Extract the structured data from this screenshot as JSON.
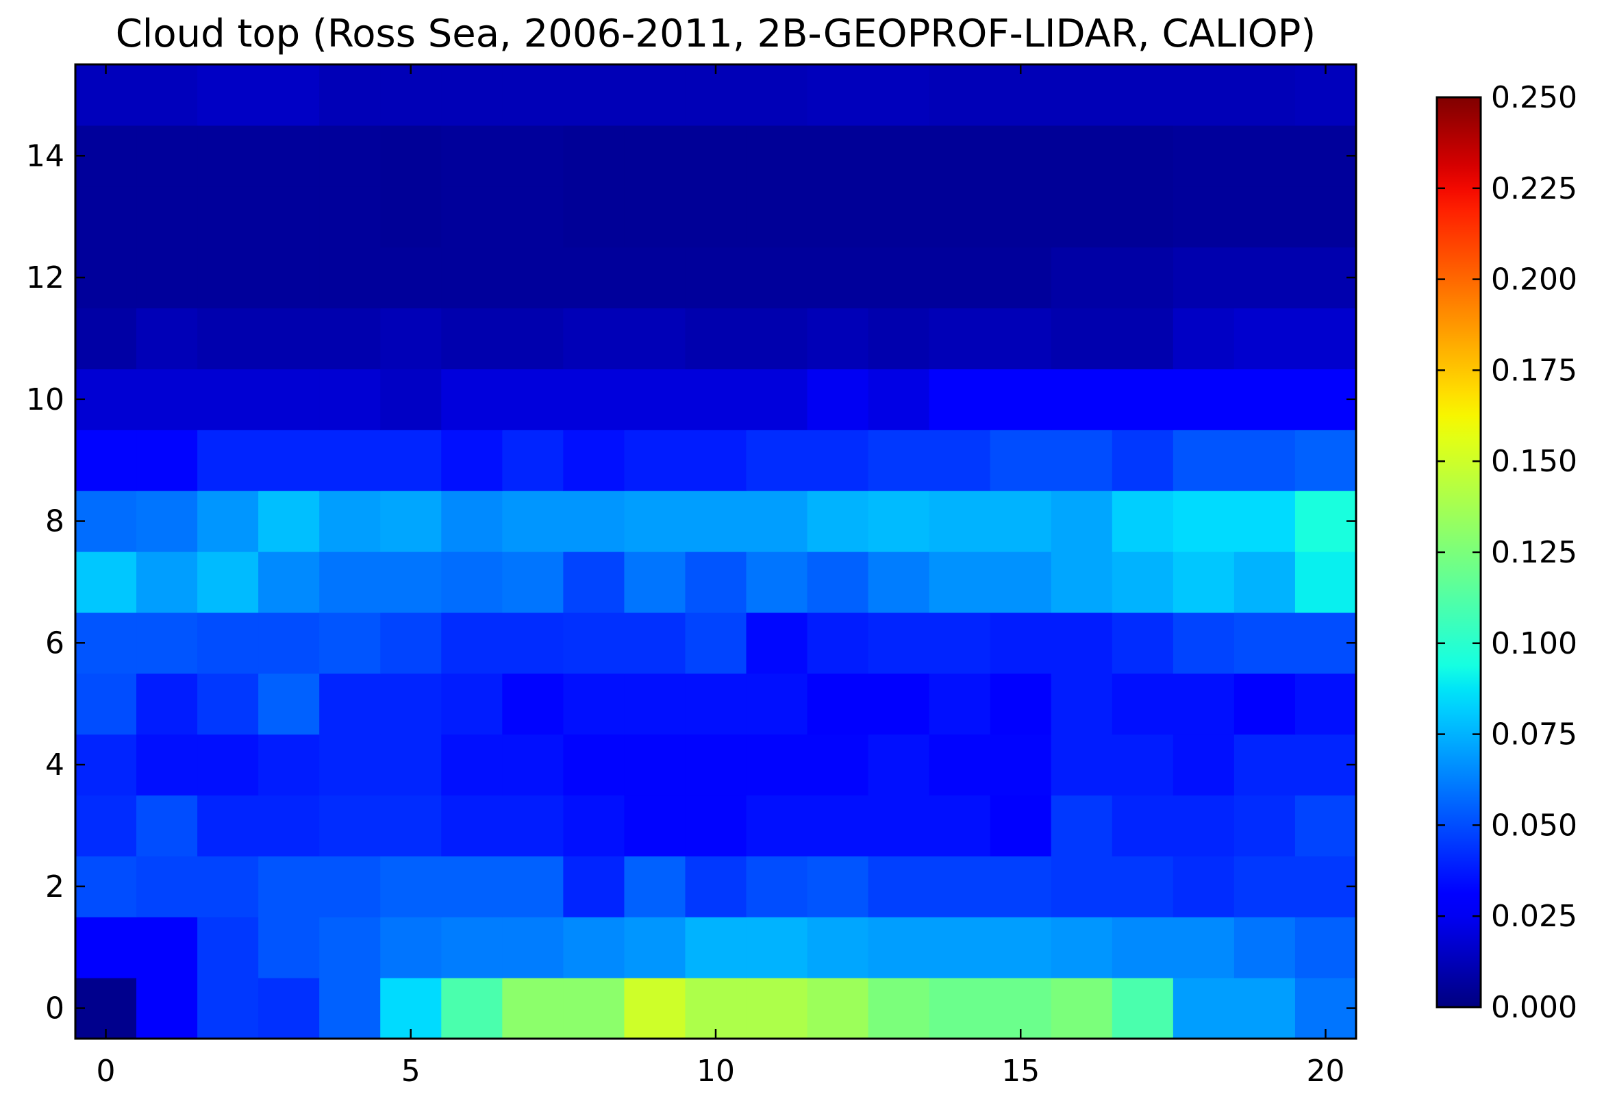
{
  "chart_data": {
    "type": "heatmap",
    "title": "Cloud top (Ross Sea, 2006-2011, 2B-GEOPROF-LIDAR, CALIOP)",
    "xlabel": "",
    "ylabel": "",
    "xlim": [
      -0.5,
      20.5
    ],
    "ylim": [
      -0.5,
      15.5
    ],
    "xticks": [
      0,
      5,
      10,
      15,
      20
    ],
    "xtick_labels": [
      "0",
      "5",
      "10",
      "15",
      "20"
    ],
    "yticks": [
      0,
      2,
      4,
      6,
      8,
      10,
      12,
      14
    ],
    "ytick_labels": [
      "0",
      "2",
      "4",
      "6",
      "8",
      "10",
      "12",
      "14"
    ],
    "colormap": "jet",
    "vmin": 0.0,
    "vmax": 0.25,
    "colorbar_ticks": [
      0.0,
      0.025,
      0.05,
      0.075,
      0.1,
      0.125,
      0.15,
      0.175,
      0.2,
      0.225,
      0.25
    ],
    "colorbar_tick_labels": [
      "0.000",
      "0.025",
      "0.050",
      "0.075",
      "0.100",
      "0.125",
      "0.150",
      "0.175",
      "0.200",
      "0.225",
      "0.250"
    ],
    "grid": false,
    "x": [
      0,
      1,
      2,
      3,
      4,
      5,
      6,
      7,
      8,
      9,
      10,
      11,
      12,
      13,
      14,
      15,
      16,
      17,
      18,
      19,
      20
    ],
    "y": [
      0,
      1,
      2,
      3,
      4,
      5,
      6,
      7,
      8,
      9,
      10,
      11,
      12,
      13,
      14,
      15
    ],
    "values": [
      [
        0.003,
        0.03,
        0.045,
        0.043,
        0.055,
        0.085,
        0.11,
        0.13,
        0.13,
        0.15,
        0.14,
        0.14,
        0.135,
        0.125,
        0.12,
        0.12,
        0.125,
        0.11,
        0.07,
        0.07,
        0.06
      ],
      [
        0.03,
        0.028,
        0.045,
        0.052,
        0.055,
        0.06,
        0.062,
        0.062,
        0.065,
        0.068,
        0.075,
        0.075,
        0.072,
        0.07,
        0.07,
        0.07,
        0.068,
        0.065,
        0.065,
        0.06,
        0.055
      ],
      [
        0.05,
        0.048,
        0.048,
        0.052,
        0.052,
        0.055,
        0.055,
        0.055,
        0.04,
        0.055,
        0.045,
        0.05,
        0.052,
        0.047,
        0.047,
        0.047,
        0.045,
        0.045,
        0.042,
        0.045,
        0.045
      ],
      [
        0.042,
        0.05,
        0.04,
        0.04,
        0.042,
        0.042,
        0.038,
        0.038,
        0.035,
        0.032,
        0.032,
        0.035,
        0.035,
        0.035,
        0.035,
        0.03,
        0.045,
        0.04,
        0.04,
        0.042,
        0.048
      ],
      [
        0.04,
        0.035,
        0.035,
        0.038,
        0.04,
        0.04,
        0.035,
        0.035,
        0.032,
        0.032,
        0.032,
        0.032,
        0.032,
        0.035,
        0.032,
        0.032,
        0.038,
        0.038,
        0.035,
        0.04,
        0.04
      ],
      [
        0.05,
        0.038,
        0.045,
        0.055,
        0.04,
        0.04,
        0.038,
        0.032,
        0.035,
        0.035,
        0.035,
        0.035,
        0.028,
        0.028,
        0.035,
        0.03,
        0.038,
        0.035,
        0.035,
        0.028,
        0.035
      ],
      [
        0.052,
        0.052,
        0.05,
        0.05,
        0.052,
        0.048,
        0.042,
        0.042,
        0.043,
        0.043,
        0.048,
        0.033,
        0.038,
        0.04,
        0.04,
        0.038,
        0.038,
        0.042,
        0.048,
        0.05,
        0.05
      ],
      [
        0.08,
        0.07,
        0.077,
        0.065,
        0.06,
        0.06,
        0.058,
        0.06,
        0.048,
        0.06,
        0.052,
        0.06,
        0.055,
        0.062,
        0.067,
        0.067,
        0.072,
        0.075,
        0.08,
        0.075,
        0.09
      ],
      [
        0.058,
        0.06,
        0.068,
        0.078,
        0.07,
        0.072,
        0.065,
        0.068,
        0.068,
        0.07,
        0.07,
        0.07,
        0.075,
        0.077,
        0.075,
        0.075,
        0.072,
        0.082,
        0.085,
        0.085,
        0.095
      ],
      [
        0.032,
        0.032,
        0.04,
        0.04,
        0.04,
        0.04,
        0.035,
        0.04,
        0.035,
        0.038,
        0.038,
        0.042,
        0.042,
        0.045,
        0.045,
        0.05,
        0.05,
        0.045,
        0.052,
        0.052,
        0.055
      ],
      [
        0.018,
        0.018,
        0.018,
        0.018,
        0.018,
        0.015,
        0.02,
        0.02,
        0.02,
        0.02,
        0.02,
        0.02,
        0.025,
        0.022,
        0.03,
        0.03,
        0.03,
        0.03,
        0.03,
        0.03,
        0.03
      ],
      [
        0.008,
        0.012,
        0.01,
        0.01,
        0.01,
        0.012,
        0.01,
        0.01,
        0.012,
        0.012,
        0.01,
        0.01,
        0.012,
        0.01,
        0.012,
        0.012,
        0.01,
        0.01,
        0.015,
        0.017,
        0.017
      ],
      [
        0.006,
        0.006,
        0.006,
        0.006,
        0.006,
        0.006,
        0.006,
        0.006,
        0.006,
        0.006,
        0.006,
        0.006,
        0.006,
        0.006,
        0.006,
        0.006,
        0.008,
        0.008,
        0.01,
        0.01,
        0.01
      ],
      [
        0.006,
        0.006,
        0.006,
        0.006,
        0.006,
        0.005,
        0.006,
        0.006,
        0.005,
        0.005,
        0.005,
        0.005,
        0.005,
        0.005,
        0.005,
        0.005,
        0.005,
        0.005,
        0.006,
        0.006,
        0.006
      ],
      [
        0.006,
        0.006,
        0.006,
        0.006,
        0.006,
        0.005,
        0.006,
        0.006,
        0.005,
        0.005,
        0.005,
        0.005,
        0.005,
        0.005,
        0.005,
        0.005,
        0.005,
        0.005,
        0.006,
        0.006,
        0.006
      ],
      [
        0.013,
        0.013,
        0.015,
        0.015,
        0.012,
        0.012,
        0.012,
        0.012,
        0.012,
        0.012,
        0.012,
        0.012,
        0.013,
        0.013,
        0.012,
        0.012,
        0.012,
        0.012,
        0.012,
        0.012,
        0.013
      ]
    ]
  }
}
